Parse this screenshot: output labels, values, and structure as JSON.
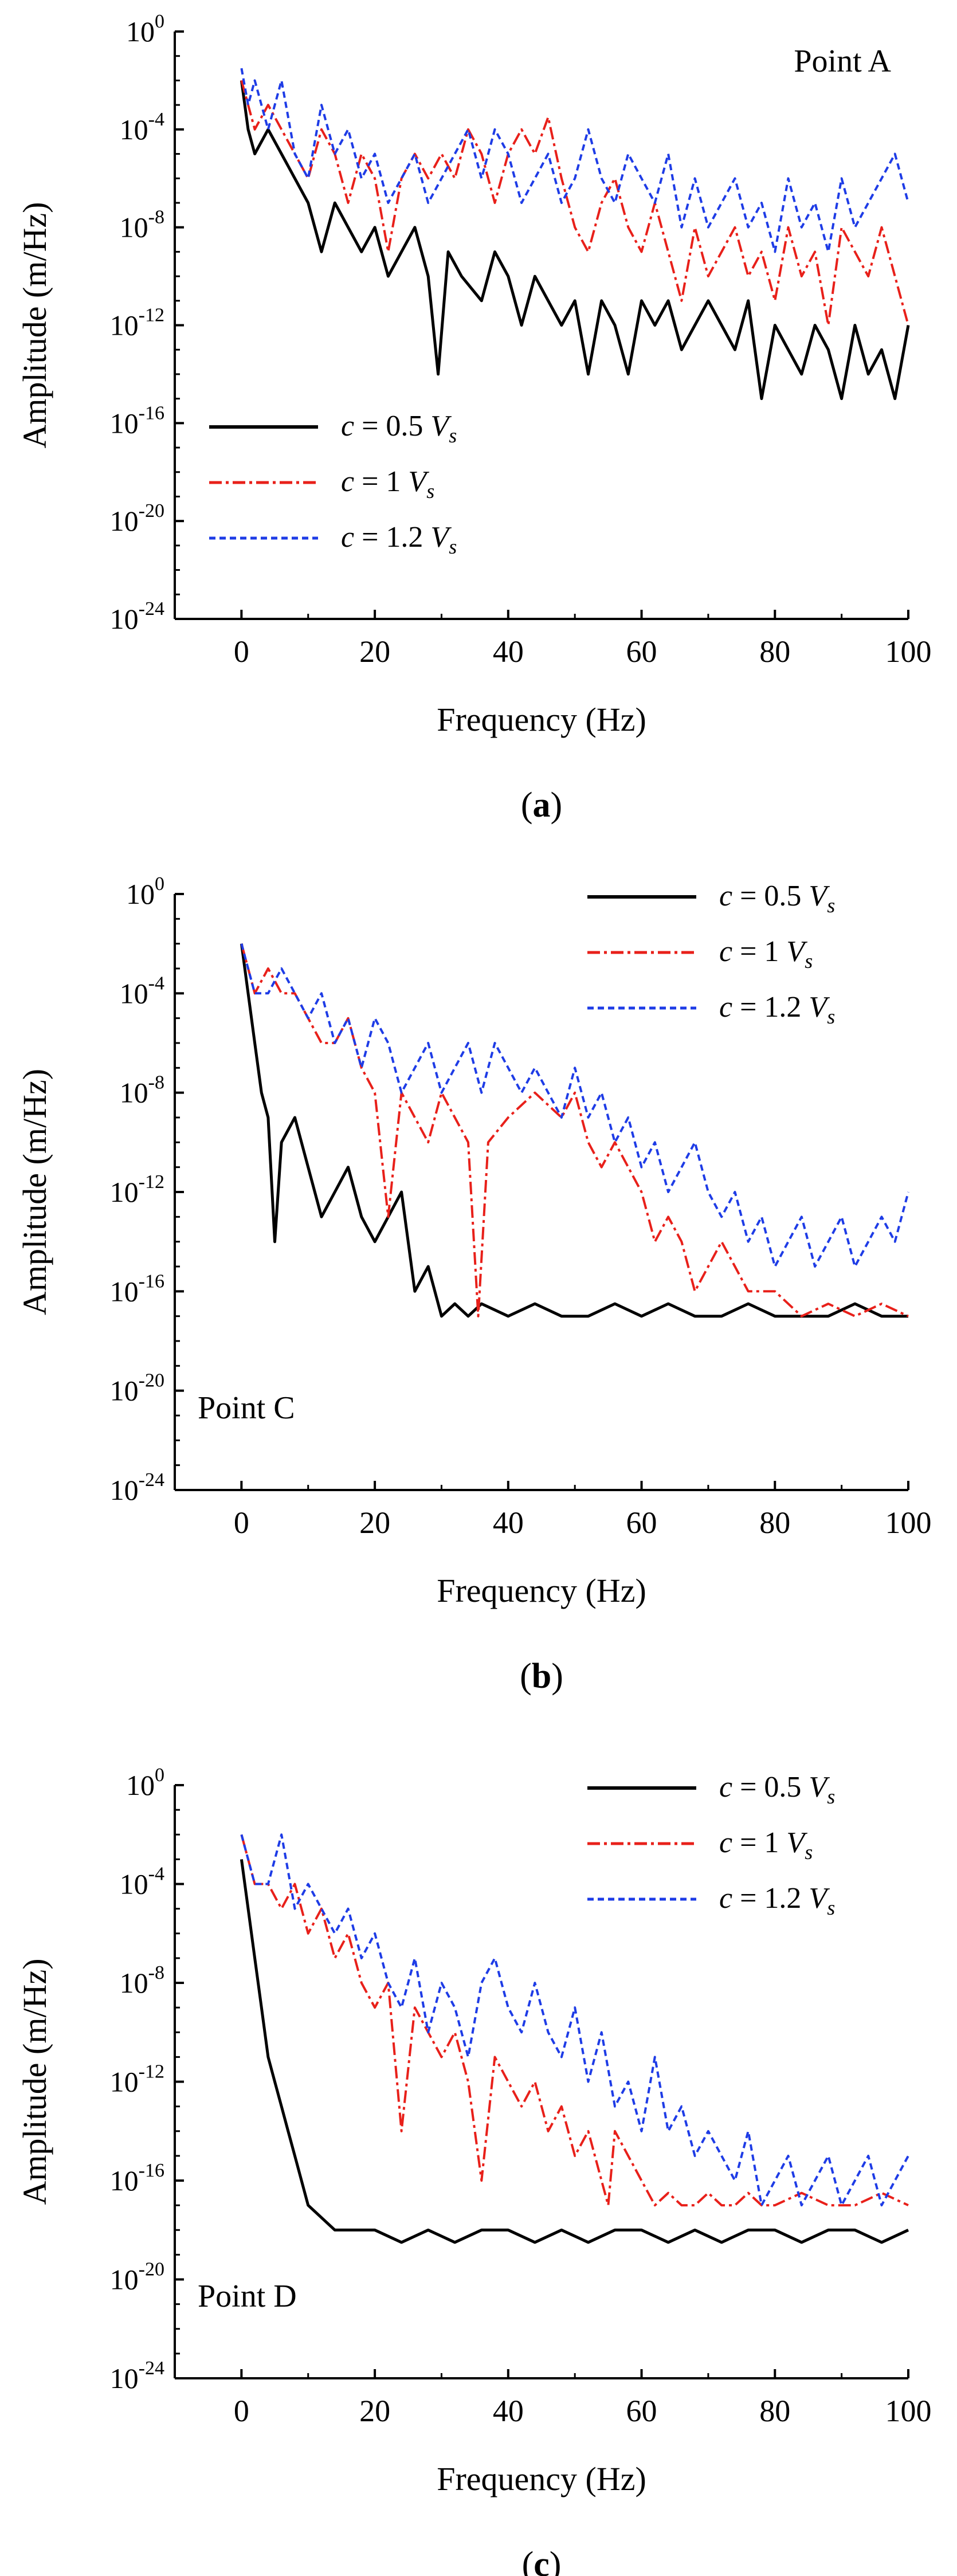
{
  "chart_data": [
    {
      "type": "line",
      "panel_label": "a",
      "annotation": "Point A",
      "xlabel": "Frequency (Hz)",
      "ylabel": "Amplitude (m/Hz)",
      "xlim": [
        -10,
        100
      ],
      "ylim_log10": [
        -24,
        0
      ],
      "y_scale": "log",
      "x_ticks": [
        0,
        20,
        40,
        60,
        80,
        100
      ],
      "y_tick_exponents": [
        0,
        -4,
        -8,
        -12,
        -16,
        -20,
        -24
      ],
      "legend_position": "lower-left",
      "series": [
        {
          "name": "c = 0.5 Vs",
          "color": "#000000",
          "dash": "solid",
          "x": [
            0,
            1,
            2,
            4,
            6,
            8,
            10,
            12,
            14,
            16,
            18,
            20,
            22,
            24,
            26,
            28,
            29.5,
            31,
            33,
            36,
            38,
            40,
            42,
            44,
            46,
            48,
            50,
            52,
            54,
            56,
            58,
            60,
            62,
            64,
            66,
            68,
            70,
            72,
            74,
            76,
            78,
            80,
            82,
            84,
            86,
            88,
            90,
            92,
            94,
            96,
            98,
            100
          ],
          "log10_amplitude": [
            -2,
            -4,
            -5,
            -4,
            -5,
            -6,
            -7,
            -9,
            -7,
            -8,
            -9,
            -8,
            -10,
            -9,
            -8,
            -10,
            -14,
            -9,
            -10,
            -11,
            -9,
            -10,
            -12,
            -10,
            -11,
            -12,
            -11,
            -14,
            -11,
            -12,
            -14,
            -11,
            -12,
            -11,
            -13,
            -12,
            -11,
            -12,
            -13,
            -11,
            -15,
            -12,
            -13,
            -14,
            -12,
            -13,
            -15,
            -12,
            -14,
            -13,
            -15,
            -12
          ]
        },
        {
          "name": "c = 1 Vs",
          "color": "#e8201a",
          "dash": "dashdot",
          "x": [
            0,
            1,
            2,
            4,
            6,
            8,
            10,
            12,
            14,
            16,
            18,
            20,
            22,
            24,
            26,
            28,
            30,
            32,
            34,
            36,
            38,
            40,
            42,
            44,
            46,
            48,
            50,
            52,
            54,
            56,
            58,
            60,
            62,
            64,
            66,
            68,
            70,
            72,
            74,
            76,
            78,
            80,
            82,
            84,
            86,
            88,
            90,
            92,
            94,
            96,
            98,
            100
          ],
          "log10_amplitude": [
            -2,
            -3,
            -4,
            -3,
            -4,
            -5,
            -6,
            -4,
            -5,
            -7,
            -5,
            -6,
            -9,
            -6,
            -5,
            -6,
            -5,
            -6,
            -4,
            -5,
            -7,
            -5,
            -4,
            -5,
            -3.5,
            -6,
            -8,
            -9,
            -7,
            -6,
            -8,
            -9,
            -7,
            -9,
            -11,
            -8,
            -10,
            -9,
            -8,
            -10,
            -9,
            -11,
            -8,
            -10,
            -9,
            -12,
            -8,
            -9,
            -10,
            -8,
            -10,
            -12
          ]
        },
        {
          "name": "c = 1.2 Vs",
          "color": "#1e3ce6",
          "dash": "dashed",
          "x": [
            0,
            1,
            2,
            4,
            6,
            8,
            10,
            12,
            14,
            16,
            18,
            20,
            22,
            24,
            26,
            28,
            30,
            32,
            34,
            36,
            38,
            40,
            42,
            44,
            46,
            48,
            50,
            52,
            54,
            56,
            58,
            60,
            62,
            64,
            66,
            68,
            70,
            72,
            74,
            76,
            78,
            80,
            82,
            84,
            86,
            88,
            90,
            92,
            94,
            96,
            98,
            100
          ],
          "log10_amplitude": [
            -1.5,
            -3,
            -2,
            -4,
            -2,
            -5,
            -6,
            -3,
            -5,
            -4,
            -6,
            -5,
            -7,
            -6,
            -5,
            -7,
            -6,
            -5,
            -4,
            -6,
            -4,
            -5,
            -7,
            -6,
            -5,
            -7,
            -6,
            -4,
            -6,
            -7,
            -5,
            -6,
            -7,
            -5,
            -8,
            -6,
            -8,
            -7,
            -6,
            -8,
            -7,
            -9,
            -6,
            -8,
            -7,
            -9,
            -6,
            -8,
            -7,
            -6,
            -5,
            -7
          ]
        }
      ]
    },
    {
      "type": "line",
      "panel_label": "b",
      "annotation": "Point C",
      "xlabel": "Frequency (Hz)",
      "ylabel": "Amplitude (m/Hz)",
      "xlim": [
        -10,
        100
      ],
      "ylim_log10": [
        -24,
        0
      ],
      "y_scale": "log",
      "x_ticks": [
        0,
        20,
        40,
        60,
        80,
        100
      ],
      "y_tick_exponents": [
        0,
        -4,
        -8,
        -12,
        -16,
        -20,
        -24
      ],
      "legend_position": "top-right",
      "series": [
        {
          "name": "c = 0.5 Vs",
          "color": "#000000",
          "dash": "solid",
          "x": [
            0,
            1,
            2,
            3,
            4,
            5,
            6,
            8,
            10,
            12,
            14,
            16,
            18,
            20,
            22,
            24,
            26,
            28,
            30,
            32,
            34,
            36,
            40,
            44,
            48,
            52,
            56,
            60,
            64,
            68,
            72,
            76,
            80,
            84,
            88,
            92,
            96,
            100
          ],
          "log10_amplitude": [
            -2,
            -4,
            -6,
            -8,
            -9,
            -14,
            -10,
            -9,
            -11,
            -13,
            -12,
            -11,
            -13,
            -14,
            -13,
            -12,
            -16,
            -15,
            -17,
            -16.5,
            -17,
            -16.5,
            -17,
            -16.5,
            -17,
            -17,
            -16.5,
            -17,
            -16.5,
            -17,
            -17,
            -16.5,
            -17,
            -17,
            -17,
            -16.5,
            -17,
            -17
          ]
        },
        {
          "name": "c = 1 Vs",
          "color": "#e8201a",
          "dash": "dashdot",
          "x": [
            0,
            1,
            2,
            4,
            6,
            8,
            10,
            12,
            14,
            16,
            18,
            20,
            22,
            24,
            26,
            28,
            30,
            32,
            34,
            35.5,
            37,
            40,
            44,
            48,
            50,
            52,
            54,
            56,
            58,
            60,
            62,
            64,
            66,
            68,
            70,
            72,
            74,
            76,
            78,
            80,
            84,
            88,
            92,
            96,
            100
          ],
          "log10_amplitude": [
            -2,
            -3,
            -4,
            -3,
            -4,
            -4,
            -5,
            -6,
            -6,
            -5,
            -7,
            -8,
            -13,
            -8,
            -9,
            -10,
            -8,
            -9,
            -10,
            -17,
            -10,
            -9,
            -8,
            -9,
            -8,
            -10,
            -11,
            -10,
            -11,
            -12,
            -14,
            -13,
            -14,
            -16,
            -15,
            -14,
            -15,
            -16,
            -16,
            -16,
            -17,
            -16.5,
            -17,
            -16.5,
            -17
          ]
        },
        {
          "name": "c = 1.2 Vs",
          "color": "#1e3ce6",
          "dash": "dashed",
          "x": [
            0,
            1,
            2,
            4,
            6,
            8,
            10,
            12,
            14,
            16,
            18,
            20,
            22,
            24,
            26,
            28,
            30,
            32,
            34,
            36,
            38,
            40,
            42,
            44,
            46,
            48,
            50,
            52,
            54,
            56,
            58,
            60,
            62,
            64,
            66,
            68,
            70,
            72,
            74,
            76,
            78,
            80,
            82,
            84,
            86,
            88,
            90,
            92,
            94,
            96,
            98,
            100
          ],
          "log10_amplitude": [
            -2,
            -3,
            -4,
            -4,
            -3,
            -4,
            -5,
            -4,
            -6,
            -5,
            -7,
            -5,
            -6,
            -8,
            -7,
            -6,
            -8,
            -7,
            -6,
            -8,
            -6,
            -7,
            -8,
            -7,
            -8,
            -9,
            -7,
            -9,
            -8,
            -10,
            -9,
            -11,
            -10,
            -12,
            -11,
            -10,
            -12,
            -13,
            -12,
            -14,
            -13,
            -15,
            -14,
            -13,
            -15,
            -14,
            -13,
            -15,
            -14,
            -13,
            -14,
            -12
          ]
        }
      ]
    },
    {
      "type": "line",
      "panel_label": "c",
      "annotation": "Point D",
      "xlabel": "Frequency (Hz)",
      "ylabel": "Amplitude (m/Hz)",
      "xlim": [
        -10,
        100
      ],
      "ylim_log10": [
        -24,
        0
      ],
      "y_scale": "log",
      "x_ticks": [
        0,
        20,
        40,
        60,
        80,
        100
      ],
      "y_tick_exponents": [
        0,
        -4,
        -8,
        -12,
        -16,
        -20,
        -24
      ],
      "legend_position": "top-right",
      "series": [
        {
          "name": "c = 0.5 Vs",
          "color": "#000000",
          "dash": "solid",
          "x": [
            0,
            1,
            2,
            3,
            4,
            5,
            6,
            7,
            8,
            9,
            10,
            12,
            14,
            16,
            20,
            24,
            28,
            32,
            36,
            40,
            44,
            48,
            52,
            56,
            60,
            64,
            68,
            72,
            76,
            80,
            84,
            88,
            92,
            96,
            100
          ],
          "log10_amplitude": [
            -3,
            -5,
            -7,
            -9,
            -11,
            -12,
            -13,
            -14,
            -15,
            -16,
            -17,
            -17.5,
            -18,
            -18,
            -18,
            -18.5,
            -18,
            -18.5,
            -18,
            -18,
            -18.5,
            -18,
            -18.5,
            -18,
            -18,
            -18.5,
            -18,
            -18.5,
            -18,
            -18,
            -18.5,
            -18,
            -18,
            -18.5,
            -18
          ]
        },
        {
          "name": "c = 1 Vs",
          "color": "#e8201a",
          "dash": "dashdot",
          "x": [
            0,
            1,
            2,
            4,
            6,
            8,
            10,
            12,
            14,
            16,
            18,
            20,
            22,
            24,
            26,
            28,
            30,
            32,
            34,
            36,
            38,
            40,
            42,
            44,
            46,
            48,
            50,
            52,
            54,
            55,
            56,
            58,
            60,
            62,
            64,
            66,
            68,
            70,
            72,
            74,
            76,
            78,
            80,
            84,
            88,
            92,
            96,
            100
          ],
          "log10_amplitude": [
            -2,
            -3,
            -4,
            -4,
            -5,
            -4,
            -6,
            -5,
            -7,
            -6,
            -8,
            -9,
            -8,
            -14,
            -9,
            -10,
            -11,
            -10,
            -12,
            -16,
            -11,
            -12,
            -13,
            -12,
            -14,
            -13,
            -15,
            -14,
            -16,
            -17,
            -14,
            -15,
            -16,
            -17,
            -16.5,
            -17,
            -17,
            -16.5,
            -17,
            -17,
            -16.5,
            -17,
            -17,
            -16.5,
            -17,
            -17,
            -16.5,
            -17
          ]
        },
        {
          "name": "c = 1.2 Vs",
          "color": "#1e3ce6",
          "dash": "dashed",
          "x": [
            0,
            1,
            2,
            4,
            6,
            8,
            10,
            12,
            14,
            16,
            18,
            20,
            22,
            24,
            26,
            28,
            30,
            32,
            34,
            36,
            38,
            40,
            42,
            44,
            46,
            48,
            50,
            52,
            54,
            56,
            58,
            60,
            62,
            64,
            66,
            68,
            70,
            72,
            74,
            76,
            78,
            80,
            82,
            84,
            86,
            88,
            90,
            92,
            94,
            96,
            98,
            100
          ],
          "log10_amplitude": [
            -2,
            -3,
            -4,
            -4,
            -2,
            -5,
            -4,
            -5,
            -6,
            -5,
            -7,
            -6,
            -8,
            -9,
            -7,
            -10,
            -8,
            -9,
            -11,
            -8,
            -7,
            -9,
            -10,
            -8,
            -10,
            -11,
            -9,
            -12,
            -10,
            -13,
            -12,
            -14,
            -11,
            -14,
            -13,
            -15,
            -14,
            -15,
            -16,
            -14,
            -17,
            -16,
            -15,
            -17,
            -16,
            -15,
            -17,
            -16,
            -15,
            -17,
            -16,
            -15
          ]
        }
      ]
    }
  ]
}
